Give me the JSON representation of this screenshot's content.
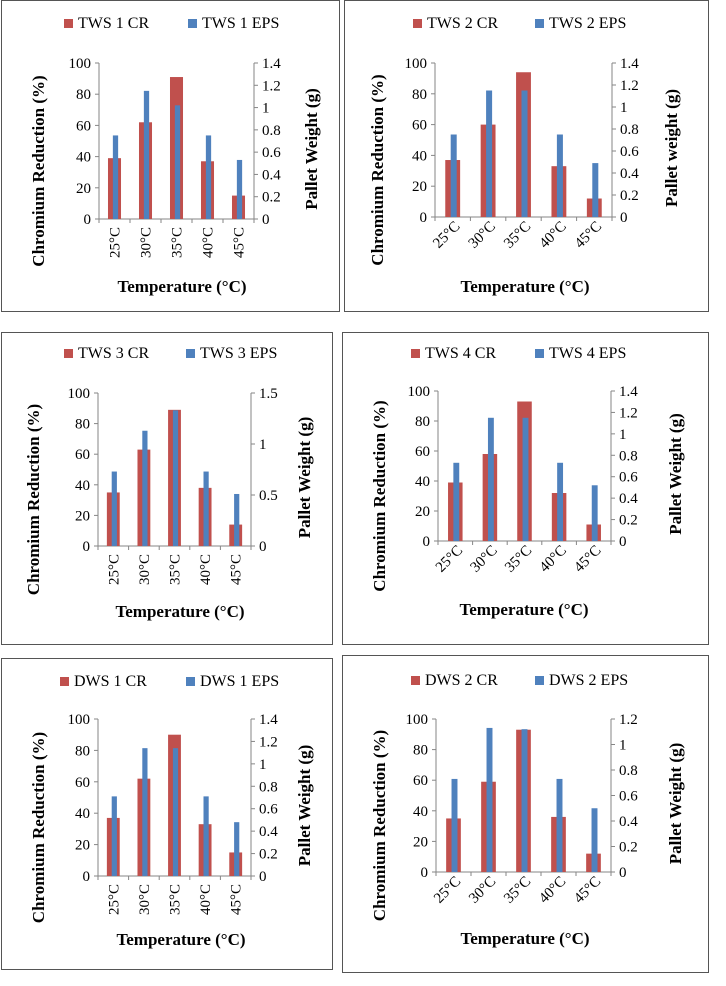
{
  "chart_data": [
    {
      "type": "bar",
      "categories": [
        "25°C",
        "30°C",
        "35°C",
        "40°C",
        "45°C"
      ],
      "series": [
        {
          "name": "TWS 1 CR",
          "axis": "left",
          "values": [
            39,
            62,
            91,
            37,
            15
          ]
        },
        {
          "name": "TWS 1 EPS",
          "axis": "right",
          "values": [
            0.75,
            1.15,
            1.02,
            0.75,
            0.53
          ]
        }
      ],
      "xlabel": "Temperature (°C)",
      "ylabel": "Chromium Reduction (%)",
      "y2label": "Pallet Weight (g)",
      "ylim": [
        0,
        100
      ],
      "y2lim": [
        0,
        1.4
      ],
      "yticks": [
        "0",
        "20",
        "40",
        "60",
        "80",
        "100"
      ],
      "y2ticks": [
        "0",
        "0.2",
        "0.4",
        "0.6",
        "0.8",
        "1",
        "1.2",
        "1.4"
      ],
      "xtick_rotation": "vertical"
    },
    {
      "type": "bar",
      "categories": [
        "25°C",
        "30°C",
        "35°C",
        "40°C",
        "45°C"
      ],
      "series": [
        {
          "name": "TWS 2 CR",
          "axis": "left",
          "values": [
            37,
            60,
            94,
            33,
            12
          ]
        },
        {
          "name": "TWS 2 EPS",
          "axis": "right",
          "values": [
            0.75,
            1.15,
            1.15,
            0.75,
            0.49
          ]
        }
      ],
      "xlabel": "Temperature (°C)",
      "ylabel": "Chromium Reduction (%)",
      "y2label": "Pallet weight (g)",
      "ylim": [
        0,
        100
      ],
      "y2lim": [
        0,
        1.4
      ],
      "yticks": [
        "0",
        "20",
        "40",
        "60",
        "80",
        "100"
      ],
      "y2ticks": [
        "0",
        "0.2",
        "0.4",
        "0.6",
        "0.8",
        "1",
        "1.2",
        "1.4"
      ],
      "xtick_rotation": "diagonal"
    },
    {
      "type": "bar",
      "categories": [
        "25°C",
        "30°C",
        "35°C",
        "40°C",
        "45°C"
      ],
      "series": [
        {
          "name": "TWS 3 CR",
          "axis": "left",
          "values": [
            35,
            63,
            89,
            38,
            14
          ]
        },
        {
          "name": "TWS 3 EPS",
          "axis": "right",
          "values": [
            0.73,
            1.13,
            1.33,
            0.73,
            0.51
          ]
        }
      ],
      "xlabel": "Temperature (°C)",
      "ylabel": "Chromium Reduction (%)",
      "y2label": "Pallet Weight (g)",
      "ylim": [
        0,
        100
      ],
      "y2lim": [
        0,
        1.5
      ],
      "yticks": [
        "0",
        "20",
        "40",
        "60",
        "80",
        "100"
      ],
      "y2ticks": [
        "0",
        "0.5",
        "1",
        "1.5"
      ],
      "xtick_rotation": "vertical"
    },
    {
      "type": "bar",
      "categories": [
        "25°C",
        "30°C",
        "35°C",
        "40°C",
        "45°C"
      ],
      "series": [
        {
          "name": "TWS 4 CR",
          "axis": "left",
          "values": [
            39,
            58,
            93,
            32,
            11
          ]
        },
        {
          "name": "TWS 4 EPS",
          "axis": "right",
          "values": [
            0.73,
            1.15,
            1.15,
            0.73,
            0.52
          ]
        }
      ],
      "xlabel": "Temperature (°C)",
      "ylabel": "Chromium Reduction (%)",
      "y2label": "Pallet Weight (g)",
      "ylim": [
        0,
        100
      ],
      "y2lim": [
        0,
        1.4
      ],
      "yticks": [
        "0",
        "20",
        "40",
        "60",
        "80",
        "100"
      ],
      "y2ticks": [
        "0",
        "0.2",
        "0.4",
        "0.6",
        "0.8",
        "1",
        "1.2",
        "1.4"
      ],
      "xtick_rotation": "diagonal"
    },
    {
      "type": "bar",
      "categories": [
        "25°C",
        "30°C",
        "35°C",
        "40°C",
        "45°C"
      ],
      "series": [
        {
          "name": "DWS 1 CR",
          "axis": "left",
          "values": [
            37,
            62,
            90,
            33,
            15
          ]
        },
        {
          "name": "DWS 1 EPS",
          "axis": "right",
          "values": [
            0.71,
            1.14,
            1.14,
            0.71,
            0.48
          ]
        }
      ],
      "xlabel": "Temperature (°C)",
      "ylabel": "Chromium Reduction (%)",
      "y2label": "Pallet Weight (g)",
      "ylim": [
        0,
        100
      ],
      "y2lim": [
        0,
        1.4
      ],
      "yticks": [
        "0",
        "20",
        "40",
        "60",
        "80",
        "100"
      ],
      "y2ticks": [
        "0",
        "0.2",
        "0.4",
        "0.6",
        "0.8",
        "1",
        "1.2",
        "1.4"
      ],
      "xtick_rotation": "vertical"
    },
    {
      "type": "bar",
      "categories": [
        "25°C",
        "30°C",
        "35°C",
        "40°C",
        "45°C"
      ],
      "series": [
        {
          "name": "DWS 2 CR",
          "axis": "left",
          "values": [
            35,
            59,
            93,
            36,
            12
          ]
        },
        {
          "name": "DWS 2 EPS",
          "axis": "right",
          "values": [
            0.73,
            1.13,
            1.12,
            0.73,
            0.5
          ]
        }
      ],
      "xlabel": "Temperature (°C)",
      "ylabel": "Chromium Reduction (%)",
      "y2label": "Pallet Weight (g)",
      "ylim": [
        0,
        100
      ],
      "y2lim": [
        0,
        1.2
      ],
      "yticks": [
        "0",
        "20",
        "40",
        "60",
        "80",
        "100"
      ],
      "y2ticks": [
        "0",
        "0.2",
        "0.4",
        "0.6",
        "0.8",
        "1",
        "1.2"
      ],
      "xtick_rotation": "diagonal"
    }
  ],
  "colors": {
    "cr": "#C0504D",
    "eps": "#4F81BD",
    "axis": "#868686"
  }
}
